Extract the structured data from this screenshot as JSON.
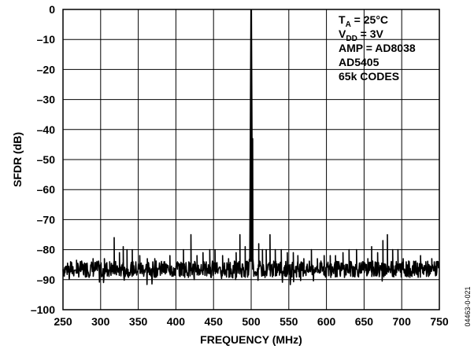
{
  "chart_data": {
    "type": "line",
    "title": "",
    "xlabel": "FREQUENCY (MHz)",
    "ylabel": "SFDR (dB)",
    "xlim": [
      250,
      750
    ],
    "ylim": [
      -100,
      0
    ],
    "grid": true,
    "x_ticks": [
      "250",
      "300",
      "350",
      "400",
      "450",
      "500",
      "550",
      "600",
      "650",
      "700",
      "750"
    ],
    "y_ticks": [
      "0",
      "–10",
      "–20",
      "–30",
      "–40",
      "–50",
      "–60",
      "–70",
      "–80",
      "–90",
      "–100"
    ],
    "annotation": {
      "ta_main": "T",
      "ta_sub": "A",
      "ta_rest": " = 25°C",
      "vdd_main": "V",
      "vdd_sub": "DD",
      "vdd_rest": " = 3V",
      "amp": "AMP = AD8038",
      "device": "AD5405",
      "codes": "65k CODES"
    },
    "series": [
      {
        "noise_floor_db": -86.5,
        "fundamental": {
          "x": 500,
          "y": 0
        },
        "spurs": [
          {
            "x": 260,
            "y": -84
          },
          {
            "x": 268,
            "y": -83.5
          },
          {
            "x": 282,
            "y": -84.5
          },
          {
            "x": 290,
            "y": -83
          },
          {
            "x": 305,
            "y": -83
          },
          {
            "x": 312,
            "y": -84
          },
          {
            "x": 318,
            "y": -76
          },
          {
            "x": 325,
            "y": -81
          },
          {
            "x": 330,
            "y": -79
          },
          {
            "x": 335,
            "y": -80
          },
          {
            "x": 342,
            "y": -80
          },
          {
            "x": 352,
            "y": -82
          },
          {
            "x": 362,
            "y": -83
          },
          {
            "x": 372,
            "y": -83
          },
          {
            "x": 385,
            "y": -84
          },
          {
            "x": 392,
            "y": -82
          },
          {
            "x": 402,
            "y": -84
          },
          {
            "x": 410,
            "y": -80
          },
          {
            "x": 420,
            "y": -75
          },
          {
            "x": 428,
            "y": -82
          },
          {
            "x": 436,
            "y": -81
          },
          {
            "x": 445,
            "y": -80
          },
          {
            "x": 452,
            "y": -80
          },
          {
            "x": 462,
            "y": -82
          },
          {
            "x": 470,
            "y": -83
          },
          {
            "x": 480,
            "y": -81
          },
          {
            "x": 485,
            "y": -75
          },
          {
            "x": 492,
            "y": -79
          },
          {
            "x": 502,
            "y": -43
          },
          {
            "x": 510,
            "y": -78
          },
          {
            "x": 515,
            "y": -80
          },
          {
            "x": 520,
            "y": -80
          },
          {
            "x": 525,
            "y": -75
          },
          {
            "x": 532,
            "y": -80
          },
          {
            "x": 540,
            "y": -80
          },
          {
            "x": 548,
            "y": -81
          },
          {
            "x": 556,
            "y": -81
          },
          {
            "x": 562,
            "y": -82
          },
          {
            "x": 570,
            "y": -83
          },
          {
            "x": 580,
            "y": -80
          },
          {
            "x": 588,
            "y": -83
          },
          {
            "x": 597,
            "y": -82
          },
          {
            "x": 605,
            "y": -82
          },
          {
            "x": 612,
            "y": -82
          },
          {
            "x": 622,
            "y": -81
          },
          {
            "x": 630,
            "y": -80
          },
          {
            "x": 640,
            "y": -80
          },
          {
            "x": 648,
            "y": -84
          },
          {
            "x": 655,
            "y": -83
          },
          {
            "x": 660,
            "y": -79
          },
          {
            "x": 668,
            "y": -81
          },
          {
            "x": 675,
            "y": -77
          },
          {
            "x": 681,
            "y": -75
          },
          {
            "x": 688,
            "y": -80
          },
          {
            "x": 695,
            "y": -80
          },
          {
            "x": 702,
            "y": -83
          },
          {
            "x": 710,
            "y": -84
          },
          {
            "x": 718,
            "y": -84
          },
          {
            "x": 725,
            "y": -82
          },
          {
            "x": 732,
            "y": -84
          },
          {
            "x": 740,
            "y": -83
          },
          {
            "x": 746,
            "y": -84
          }
        ]
      }
    ],
    "figure_id": "04463-0-021"
  }
}
